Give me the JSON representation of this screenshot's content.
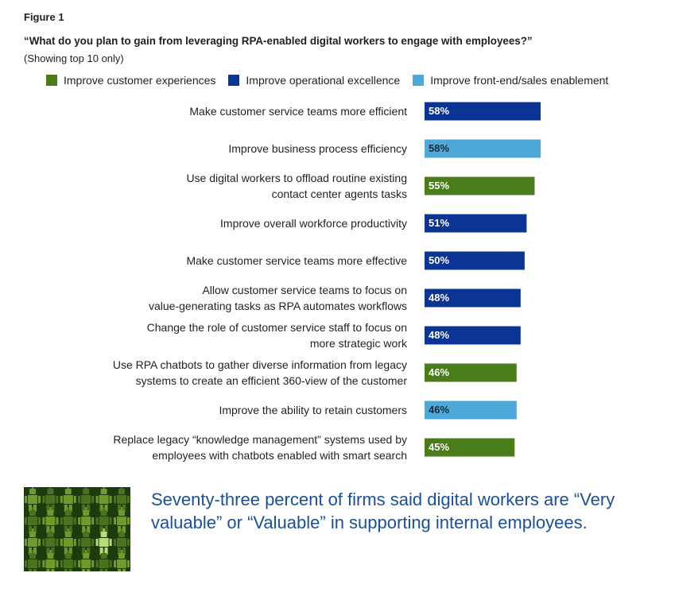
{
  "figure_label": "Figure 1",
  "chart_data": {
    "type": "bar",
    "orientation": "horizontal",
    "title": "“What do you plan to gain from leveraging RPA-enabled digital workers to engage with employees?”",
    "subtitle": "(Showing top 10 only)",
    "xlim": [
      0,
      100
    ],
    "grid": false,
    "legend_position": "top",
    "legend": [
      {
        "name": "Improve customer experiences",
        "color": "#4a7c19"
      },
      {
        "name": "Improve operational excellence",
        "color": "#0a3594"
      },
      {
        "name": "Improve front-end/sales enablement",
        "color": "#4ea9da"
      }
    ],
    "categories": [
      [
        "Make customer service teams more efficient"
      ],
      [
        "Improve business process efficiency"
      ],
      [
        "Use digital workers to offload routine existing",
        "contact center agents tasks"
      ],
      [
        "Improve overall workforce productivity"
      ],
      [
        "Make customer service teams more effective"
      ],
      [
        "Allow customer service teams to focus on",
        "value-generating tasks as RPA automates workflows"
      ],
      [
        "Change the role of customer service staff to focus on",
        "more strategic work"
      ],
      [
        "Use RPA chatbots to gather diverse information from legacy",
        "systems to create an efficient 360-view of the customer"
      ],
      [
        "Improve the ability to retain customers"
      ],
      [
        "Replace legacy “knowledge management” systems used by",
        "employees with chatbots enabled with smart search"
      ]
    ],
    "values": [
      58,
      58,
      55,
      51,
      50,
      48,
      48,
      46,
      46,
      45
    ],
    "value_labels": [
      "58%",
      "58%",
      "55%",
      "51%",
      "50%",
      "48%",
      "48%",
      "46%",
      "46%",
      "45%"
    ],
    "series_index": [
      1,
      2,
      0,
      1,
      1,
      1,
      1,
      0,
      2,
      0
    ]
  },
  "callout": "Seventy-three percent of firms said digital workers are “Very valuable” or “Valuable” in supporting internal employees.",
  "colors": {
    "green": "#4a7c19",
    "navy": "#0a3594",
    "light_blue": "#4ea9da",
    "callout_text": "#1a4f9c",
    "robot_bg": "#1f3a0c"
  },
  "image": {
    "icon": "robot-pattern-icon"
  }
}
